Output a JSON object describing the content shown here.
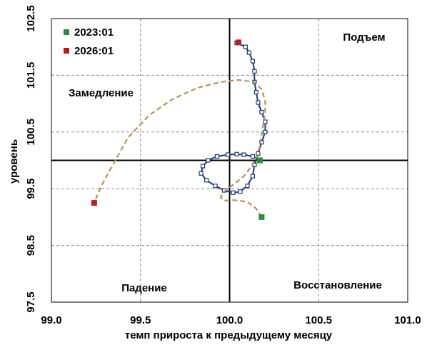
{
  "chart_data": {
    "type": "scatter",
    "title": "",
    "xlabel": "темп прироста к предыдущему месяцу",
    "ylabel": "уровень",
    "xlim": [
      99.0,
      101.0
    ],
    "ylim": [
      97.5,
      102.5
    ],
    "x_ticks": [
      "99.0",
      "99.5",
      "100.0",
      "100.5",
      "101.0"
    ],
    "y_ticks": [
      "97.5",
      "98.5",
      "99.5",
      "100.5",
      "101.5",
      "102.5"
    ],
    "x_tick_values": [
      99.0,
      99.5,
      100.0,
      100.5,
      101.0
    ],
    "y_tick_values": [
      97.5,
      98.5,
      99.5,
      100.5,
      101.5,
      102.5
    ],
    "grid": true,
    "reference_lines": {
      "x": 100.0,
      "y": 100.0
    },
    "quadrant_labels": {
      "top_right": "Подъем",
      "top_left": "Замедление",
      "bottom_left": "Падение",
      "bottom_right": "Восстановление"
    },
    "legend": {
      "position": "top-left",
      "entries": [
        {
          "label": "2023:01",
          "color": "#2e8b3e"
        },
        {
          "label": "2026:01",
          "color": "#b22020"
        }
      ]
    },
    "series": [
      {
        "style": "solid",
        "color": "#1f3a78",
        "marker": "square-open",
        "points": [
          [
            100.17,
            100.0
          ],
          [
            100.13,
            100.07
          ],
          [
            100.08,
            100.1
          ],
          [
            100.04,
            100.11
          ],
          [
            99.99,
            100.1
          ],
          [
            99.93,
            100.07
          ],
          [
            99.88,
            100.0
          ],
          [
            99.85,
            99.9
          ],
          [
            99.84,
            99.77
          ],
          [
            99.87,
            99.65
          ],
          [
            99.92,
            99.55
          ],
          [
            99.97,
            99.47
          ],
          [
            100.02,
            99.43
          ],
          [
            100.06,
            99.45
          ],
          [
            100.1,
            99.55
          ],
          [
            100.13,
            99.72
          ],
          [
            100.14,
            99.92
          ],
          [
            100.16,
            100.12
          ],
          [
            100.18,
            100.32
          ],
          [
            100.2,
            100.5
          ],
          [
            100.2,
            100.68
          ],
          [
            100.18,
            100.85
          ],
          [
            100.16,
            101.02
          ],
          [
            100.15,
            101.2
          ],
          [
            100.14,
            101.38
          ],
          [
            100.14,
            101.57
          ],
          [
            100.13,
            101.75
          ],
          [
            100.11,
            101.9
          ],
          [
            100.09,
            102.0
          ],
          [
            100.04,
            102.07
          ]
        ]
      },
      {
        "style": "dashed",
        "color": "#b09466",
        "marker": "none",
        "points": [
          [
            100.18,
            99.0
          ],
          [
            100.15,
            99.15
          ],
          [
            100.1,
            99.27
          ],
          [
            100.02,
            99.3
          ],
          [
            99.97,
            99.29
          ],
          [
            99.95,
            99.35
          ],
          [
            99.97,
            99.45
          ],
          [
            100.02,
            99.57
          ],
          [
            100.08,
            99.72
          ],
          [
            100.12,
            99.88
          ],
          [
            100.15,
            100.05
          ],
          [
            100.17,
            100.25
          ],
          [
            100.18,
            100.45
          ],
          [
            100.19,
            100.65
          ],
          [
            100.2,
            100.85
          ],
          [
            100.2,
            101.05
          ],
          [
            100.18,
            101.25
          ],
          [
            100.14,
            101.38
          ],
          [
            100.05,
            101.42
          ],
          [
            99.95,
            101.38
          ],
          [
            99.82,
            101.28
          ],
          [
            99.68,
            101.08
          ],
          [
            99.55,
            100.8
          ],
          [
            99.43,
            100.4
          ],
          [
            99.35,
            99.95
          ],
          [
            99.28,
            99.55
          ],
          [
            99.24,
            99.25
          ]
        ]
      }
    ],
    "markers": [
      {
        "label": "2023:01",
        "x": 100.17,
        "y": 100.0,
        "color": "#2e8b3e"
      },
      {
        "label": "2023:01",
        "x": 100.18,
        "y": 99.0,
        "color": "#2e8b3e"
      },
      {
        "label": "2026:01",
        "x": 100.05,
        "y": 102.08,
        "color": "#b22020"
      },
      {
        "label": "2026:01",
        "x": 99.24,
        "y": 99.25,
        "color": "#b22020"
      }
    ]
  }
}
